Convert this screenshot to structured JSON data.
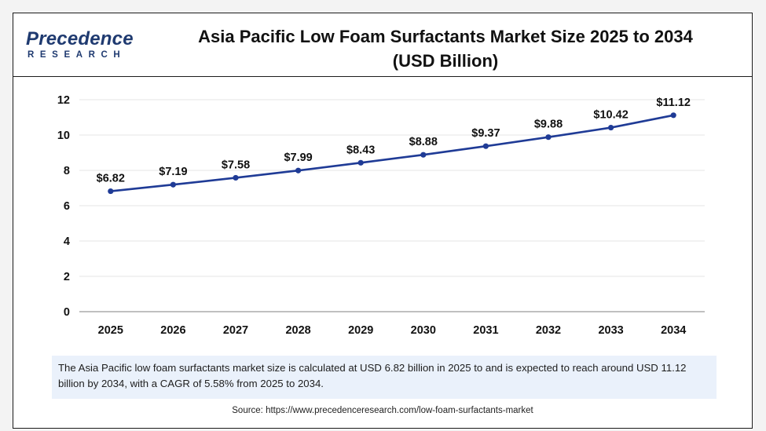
{
  "logo": {
    "main": "Precedence",
    "sub": "RESEARCH"
  },
  "title_line1": "Asia Pacific Low Foam Surfactants Market Size 2025 to 2034",
  "title_line2": "(USD Billion)",
  "note": "The Asia Pacific low foam surfactants market size is calculated at USD 6.82 billion in 2025 to and is expected to reach around USD 11.12 billion by 2034, with a CAGR of 5.58% from 2025 to 2034.",
  "source": "Source: https://www.precedenceresearch.com/low-foam-surfactants-market",
  "colors": {
    "line": "#1f3b96",
    "brand": "#1f3a70",
    "note_bg": "#eaf1fb"
  },
  "chart_data": {
    "type": "line",
    "x": [
      "2025",
      "2026",
      "2027",
      "2028",
      "2029",
      "2030",
      "2031",
      "2032",
      "2033",
      "2034"
    ],
    "series": [
      {
        "values": [
          6.82,
          7.19,
          7.58,
          7.99,
          8.43,
          8.88,
          9.37,
          9.88,
          10.42,
          11.12
        ],
        "labels": [
          "$6.82",
          "$7.19",
          "$7.58",
          "$7.99",
          "$8.43",
          "$8.88",
          "$9.37",
          "$9.88",
          "$10.42",
          "$11.12"
        ]
      }
    ],
    "yticks": [
      0,
      2,
      4,
      6,
      8,
      10,
      12
    ],
    "ylim": [
      0,
      12
    ],
    "grid": true,
    "legend": "none"
  }
}
